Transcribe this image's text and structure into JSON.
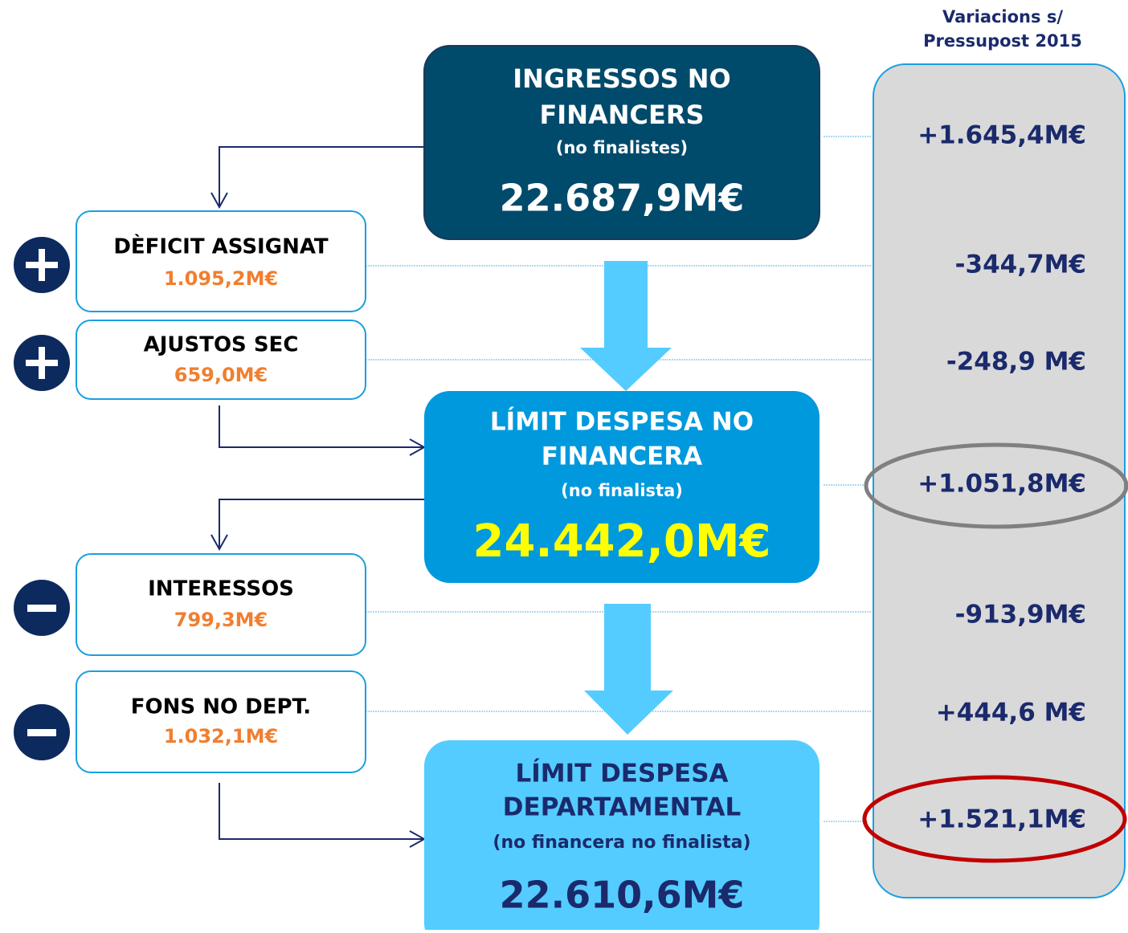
{
  "header": {
    "lines": [
      "Variacions s/",
      "Pressupost 2015"
    ]
  },
  "main_boxes": [
    {
      "title_lines": [
        "INGRESSOS NO",
        "FINANCERS"
      ],
      "subtitle": "(no finalistes)",
      "value": "22.687,9M€"
    },
    {
      "title_lines": [
        "LÍMIT DESPESA NO",
        "FINANCERA"
      ],
      "subtitle": "(no finalista)",
      "value": "24.442,0M€"
    },
    {
      "title_lines": [
        "LÍMIT DESPESA",
        "DEPARTAMENTAL"
      ],
      "subtitle": "(no financera no finalista)",
      "value": "22.610,6M€"
    }
  ],
  "side_boxes": [
    {
      "title": "DÈFICIT ASSIGNAT",
      "value": "1.095,2M€"
    },
    {
      "title": "AJUSTOS SEC",
      "value": "659,0M€"
    },
    {
      "title": "INTERESSOS",
      "value": "799,3M€"
    },
    {
      "title": "FONS NO DEPT.",
      "value": "1.032,1M€"
    }
  ],
  "variations": [
    "+1.645,4M€",
    "-344,7M€",
    "-248,9 M€",
    "+1.051,8M€",
    "-913,9M€",
    "+444,6 M€",
    "+1.521,1M€"
  ]
}
